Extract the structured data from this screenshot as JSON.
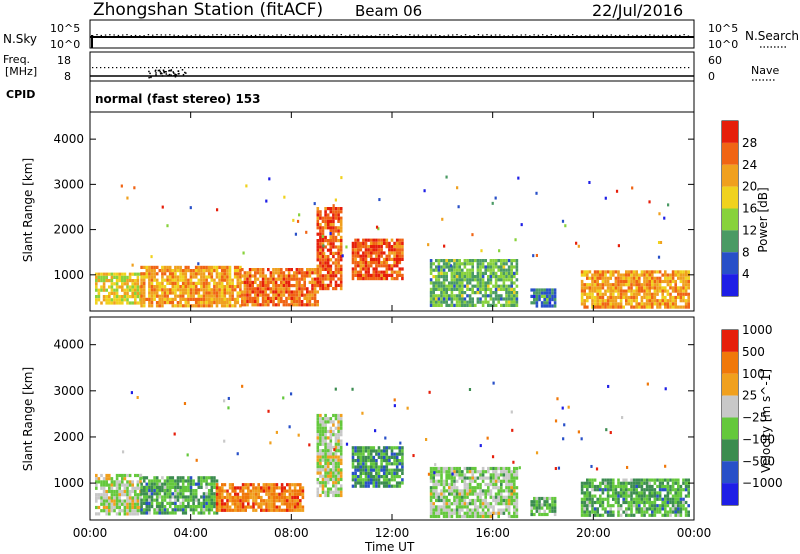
{
  "header": {
    "title": "Zhongshan Station (fitACF)",
    "beam": "Beam 06",
    "date": "22/Jul/2016"
  },
  "noise_panel": {
    "left_label": "N.Sky",
    "left_ticks": [
      "10^5",
      "10^0"
    ],
    "right_ticks": [
      "10^5",
      "10^0"
    ],
    "right_label": "N.Search"
  },
  "freq_panel": {
    "left_label_1": "Freq.",
    "left_label_2": "[MHz]",
    "left_ticks": [
      "18",
      "8"
    ],
    "right_ticks": [
      "60",
      "0"
    ],
    "right_label": "Nave"
  },
  "cpid_panel": {
    "label": "CPID",
    "text": "normal (fast stereo) 153"
  },
  "colors": {
    "power_scale": [
      "#1e1ee6",
      "#2850c8",
      "#4a9a64",
      "#88d23c",
      "#f0d21e",
      "#f0a01e",
      "#f06414",
      "#e61e0a"
    ],
    "velocity_scale": [
      "#1e1ee6",
      "#2850c8",
      "#3c8c50",
      "#64c83c",
      "#c8c8c8",
      "#f0a01e",
      "#f0780a",
      "#e61e0a"
    ]
  },
  "chart_data": [
    {
      "type": "heatmap",
      "name": "power",
      "ylabel": "Slant Range [km]",
      "yticks": [
        1000,
        2000,
        3000,
        4000
      ],
      "ylim": [
        200,
        4600
      ],
      "xlim": [
        0,
        24
      ],
      "colorbar": {
        "label": "Power [dB]",
        "ticks": [
          "4",
          "8",
          "12",
          "16",
          "20",
          "24",
          "28"
        ],
        "range": [
          0,
          32
        ]
      },
      "regions": [
        {
          "t0": 0.2,
          "t1": 2.0,
          "r0": 350,
          "r1": 1050,
          "value": 18
        },
        {
          "t0": 2.0,
          "t1": 6.0,
          "r0": 350,
          "r1": 1200,
          "value": 22
        },
        {
          "t0": 6.0,
          "t1": 9.0,
          "r0": 350,
          "r1": 1150,
          "value": 25
        },
        {
          "t0": 9.0,
          "t1": 10.0,
          "r0": 700,
          "r1": 2500,
          "value": 27
        },
        {
          "t0": 10.4,
          "t1": 12.4,
          "r0": 900,
          "r1": 1800,
          "value": 27
        },
        {
          "t0": 13.5,
          "t1": 17.0,
          "r0": 300,
          "r1": 1350,
          "value": 12
        },
        {
          "t0": 17.5,
          "t1": 18.5,
          "r0": 300,
          "r1": 700,
          "value": 8
        },
        {
          "t0": 19.5,
          "t1": 23.8,
          "r0": 300,
          "r1": 1100,
          "value": 22
        }
      ]
    },
    {
      "type": "heatmap",
      "name": "velocity",
      "ylabel": "Slant Range [km]",
      "xlabel": "Time UT",
      "yticks": [
        1000,
        2000,
        3000,
        4000
      ],
      "ylim": [
        200,
        4600
      ],
      "xlim": [
        0,
        24
      ],
      "xticks": [
        "00:00",
        "04:00",
        "08:00",
        "12:00",
        "16:00",
        "20:00",
        "00:00"
      ],
      "colorbar": {
        "label": "Velocity [m s^-1]",
        "ticks": [
          "−1000",
          "−500",
          "−100",
          "−25",
          "25",
          "100",
          "500",
          "1000"
        ],
        "range": [
          -1200,
          1200
        ]
      },
      "regions": [
        {
          "t0": 0.2,
          "t1": 2.0,
          "r0": 350,
          "r1": 1200,
          "value": 60
        },
        {
          "t0": 2.0,
          "t1": 5.0,
          "r0": 350,
          "r1": 1150,
          "value": -300
        },
        {
          "t0": 5.0,
          "t1": 8.5,
          "r0": 400,
          "r1": 1000,
          "value": 700
        },
        {
          "t0": 9.0,
          "t1": 10.0,
          "r0": 700,
          "r1": 2500,
          "value": 80
        },
        {
          "t0": 10.4,
          "t1": 12.4,
          "r0": 900,
          "r1": 1800,
          "value": -400
        },
        {
          "t0": 13.5,
          "t1": 17.0,
          "r0": 300,
          "r1": 1350,
          "value": 0
        },
        {
          "t0": 17.5,
          "t1": 18.5,
          "r0": 300,
          "r1": 700,
          "value": -200
        },
        {
          "t0": 19.5,
          "t1": 23.8,
          "r0": 300,
          "r1": 1100,
          "value": -300
        }
      ]
    }
  ]
}
